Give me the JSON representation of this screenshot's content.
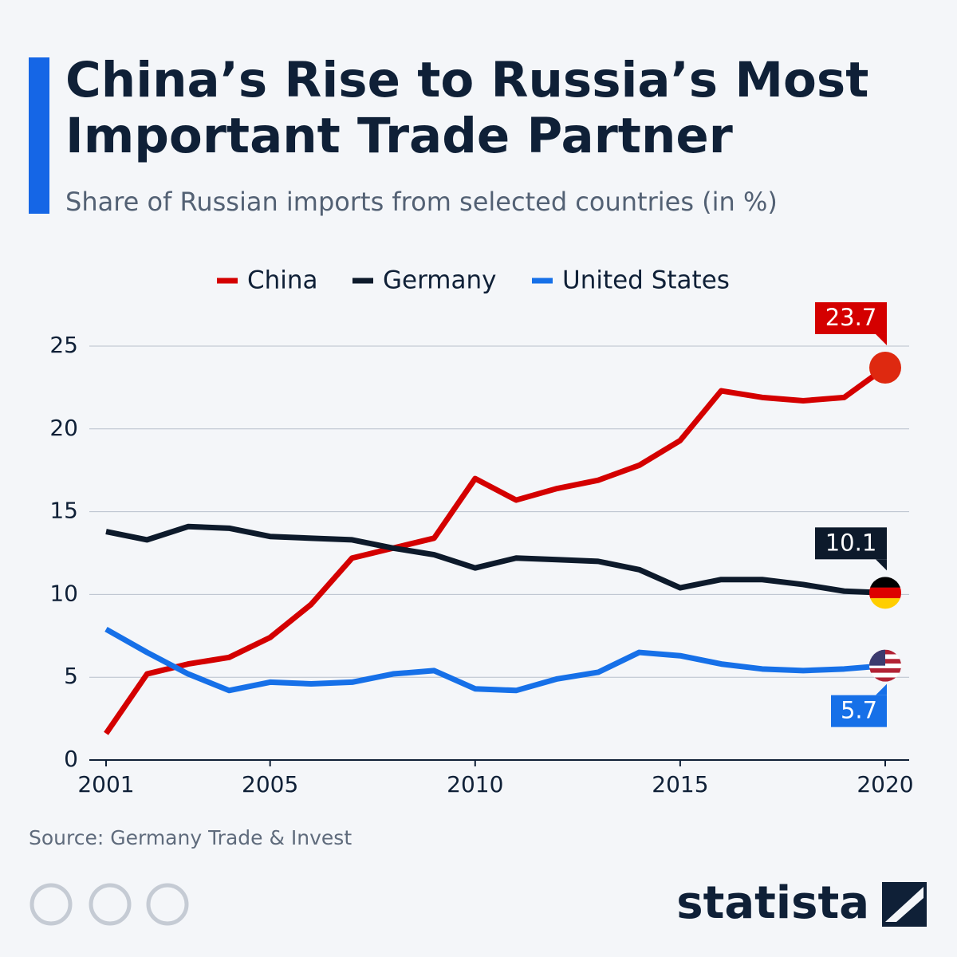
{
  "chart_data": {
    "type": "line",
    "title": "China’s Rise to Russia’s Most Important Trade Partner",
    "subtitle": "Share of Russian imports from selected countries (in %)",
    "source": "Source: Germany Trade & Invest",
    "x": [
      2001,
      2002,
      2003,
      2004,
      2005,
      2006,
      2007,
      2008,
      2009,
      2010,
      2011,
      2012,
      2013,
      2014,
      2015,
      2016,
      2017,
      2018,
      2019,
      2020
    ],
    "series": [
      {
        "name": "China",
        "color": "#d40000",
        "values": [
          1.6,
          5.2,
          5.8,
          6.2,
          7.4,
          9.4,
          12.2,
          12.8,
          13.4,
          17.0,
          15.7,
          16.4,
          16.9,
          17.8,
          19.3,
          22.3,
          21.9,
          21.7,
          21.9,
          23.7
        ]
      },
      {
        "name": "Germany",
        "color": "#0d1a2b",
        "values": [
          13.8,
          13.3,
          14.1,
          14.0,
          13.5,
          13.4,
          13.3,
          12.8,
          12.4,
          11.6,
          12.2,
          12.1,
          12.0,
          11.5,
          10.4,
          10.9,
          10.9,
          10.6,
          10.2,
          10.1
        ]
      },
      {
        "name": "United States",
        "color": "#1670e8",
        "values": [
          7.9,
          6.5,
          5.2,
          4.2,
          4.7,
          4.6,
          4.7,
          5.2,
          5.4,
          4.3,
          4.2,
          4.9,
          5.3,
          6.5,
          6.3,
          5.8,
          5.5,
          5.4,
          5.5,
          5.7
        ]
      }
    ],
    "xlim": [
      2001,
      2020
    ],
    "xticks": [
      2001,
      2005,
      2010,
      2015,
      2020
    ],
    "ylim": [
      0,
      25
    ],
    "yticks": [
      0,
      5,
      10,
      15,
      20,
      25
    ],
    "grid": true,
    "legend": "top"
  },
  "footer": {
    "brand": "statista"
  }
}
